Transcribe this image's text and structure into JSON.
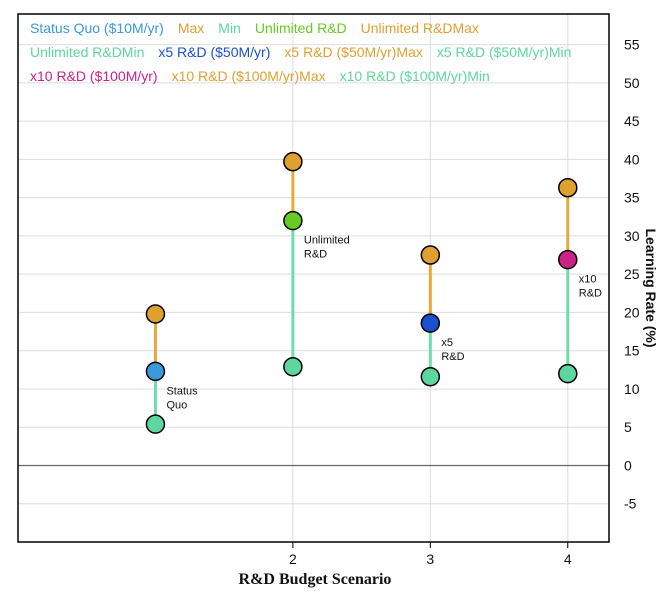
{
  "chart_data": {
    "type": "scatter",
    "title": "",
    "xlabel": "R&D Budget Scenario",
    "ylabel": "Learning Rate (%)",
    "xlim": [
      0,
      4.3
    ],
    "ylim": [
      -10,
      59
    ],
    "x_ticks": [
      "2",
      "3",
      "4"
    ],
    "y_ticks": [
      "-5",
      "0",
      "5",
      "10",
      "15",
      "20",
      "25",
      "30",
      "35",
      "40",
      "45",
      "50",
      "55"
    ],
    "grid": true,
    "legend_position": "top",
    "legend": [
      {
        "label": "Status Quo ($10M/yr)",
        "color": "#3a9ad9"
      },
      {
        "label": "Max",
        "color": "#e0a030"
      },
      {
        "label": "Min",
        "color": "#5ed6a0"
      },
      {
        "label": "Unlimited R&D",
        "color": "#66cc22"
      },
      {
        "label": "Unlimited R&DMax",
        "color": "#e0a030"
      },
      {
        "label": "Unlimited R&DMin",
        "color": "#5ed6a0"
      },
      {
        "label": "x5 R&D ($50M/yr)",
        "color": "#1a4fd0"
      },
      {
        "label": "x5 R&D ($50M/yr)Max",
        "color": "#e0a030"
      },
      {
        "label": "x5 R&D ($50M/yr)Min",
        "color": "#5ed6a0"
      },
      {
        "label": "x10 R&D ($100M/yr)",
        "color": "#cc2288"
      },
      {
        "label": "x10 R&D ($100M/yr)Max",
        "color": "#e0a030"
      },
      {
        "label": "x10 R&D ($100M/yr)Min",
        "color": "#5ed6a0"
      }
    ],
    "series": [
      {
        "x": 1,
        "value": 12.3,
        "max": 19.8,
        "min": 5.4,
        "color": "#3a9ad9",
        "annotation": [
          "Status",
          "Quo"
        ]
      },
      {
        "x": 2,
        "value": 32.0,
        "max": 39.7,
        "min": 12.9,
        "color": "#66cc22",
        "annotation": [
          "Unlimited",
          "R&D"
        ]
      },
      {
        "x": 3,
        "value": 18.6,
        "max": 27.5,
        "min": 11.6,
        "color": "#1a4fd0",
        "annotation": [
          "x5",
          "R&D"
        ]
      },
      {
        "x": 4,
        "value": 26.9,
        "max": 36.3,
        "min": 12.0,
        "color": "#cc2288",
        "annotation": [
          "x10",
          "R&D"
        ]
      }
    ],
    "max_color": "#e0a030",
    "min_color": "#5ed6a0",
    "max_line_color": "#e8a838",
    "min_line_color": "#6fdcb0"
  }
}
